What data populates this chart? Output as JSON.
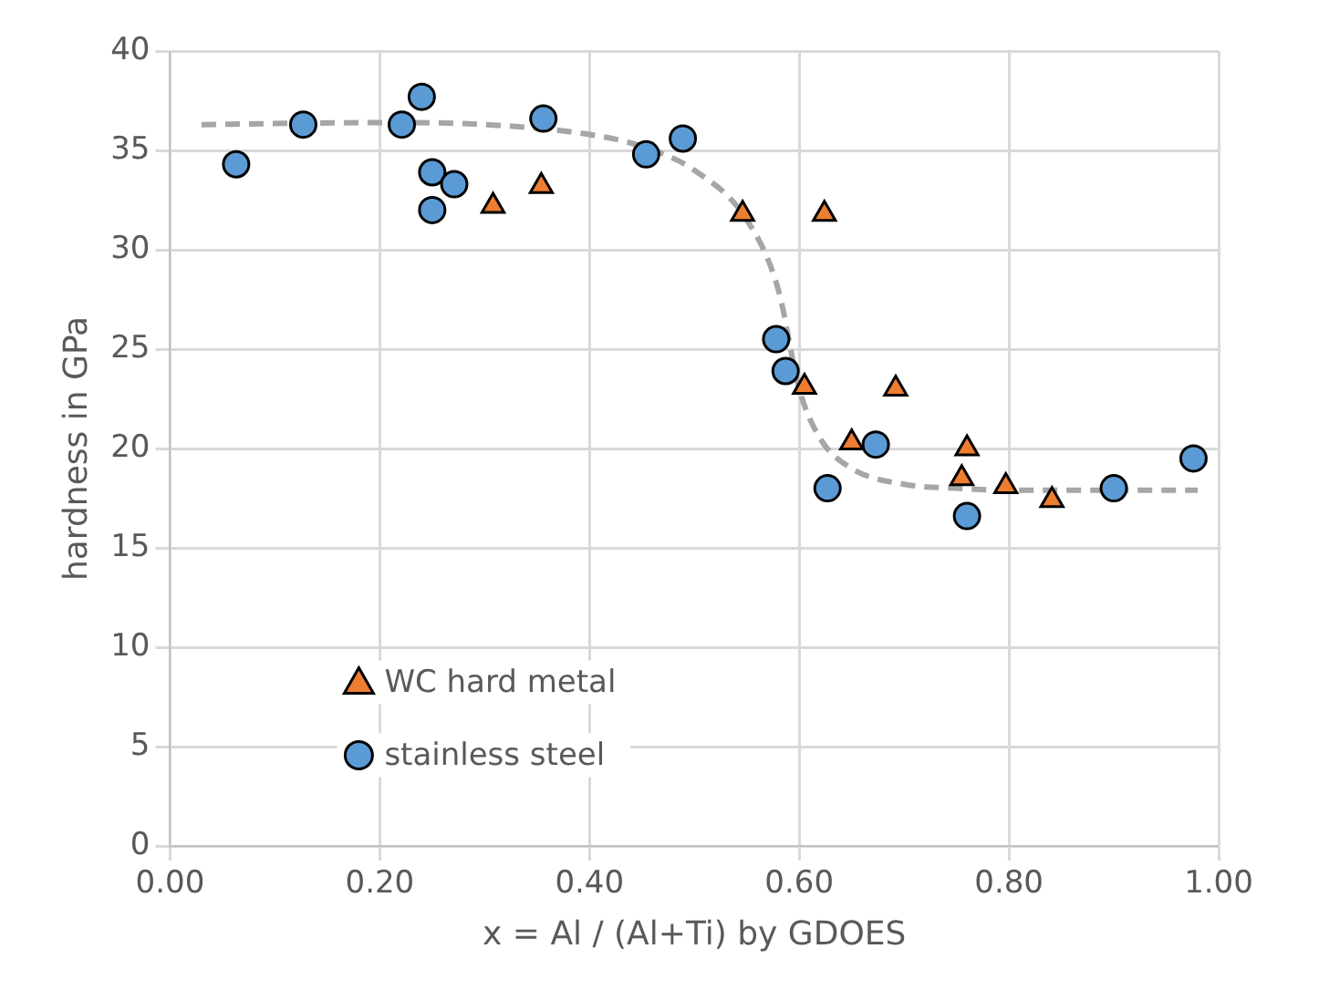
{
  "chart_data": {
    "type": "scatter",
    "xlabel": "x = Al / (Al+Ti) by GDOES",
    "ylabel": "hardness in GPa",
    "xlim": [
      0,
      1
    ],
    "xticks": [
      {
        "value": 0,
        "label": "0.00"
      },
      {
        "value": 0.2,
        "label": "0.20"
      },
      {
        "value": 0.4,
        "label": "0.40"
      },
      {
        "value": 0.6,
        "label": "0.60"
      },
      {
        "value": 0.8,
        "label": "0.80"
      },
      {
        "value": 1,
        "label": "1.00"
      }
    ],
    "ylim": [
      0,
      40
    ],
    "yticks": [
      0,
      5,
      10,
      15,
      20,
      25,
      30,
      35,
      40
    ],
    "grid": true,
    "legend": "bottom left",
    "series": [
      {
        "type": "line",
        "color": "#a6a6a6",
        "line_style": "dashed",
        "marker": "none",
        "x": [
          0.03,
          0.2,
          0.3,
          0.4,
          0.45,
          0.5,
          0.55,
          0.58,
          0.6,
          0.62,
          0.65,
          0.7,
          0.75,
          0.8,
          0.98
        ],
        "values": [
          36.3,
          36.4,
          36.3,
          35.8,
          35.2,
          34.0,
          31.5,
          28.0,
          23.0,
          20.5,
          19.0,
          18.2,
          18.0,
          17.9,
          17.9
        ]
      },
      {
        "name": "WC hard metal",
        "color": "#ed7d31",
        "marker": "triangle",
        "x": [
          0.308,
          0.354,
          0.546,
          0.624,
          0.605,
          0.65,
          0.692,
          0.76,
          0.755,
          0.797,
          0.841
        ],
        "values": [
          32.2,
          33.2,
          31.8,
          31.8,
          23.1,
          20.3,
          23.0,
          20.0,
          18.5,
          18.1,
          17.4
        ]
      },
      {
        "name": "stainless steel",
        "color": "#5b9bd5",
        "marker": "circle",
        "x": [
          0.063,
          0.127,
          0.221,
          0.24,
          0.25,
          0.25,
          0.271,
          0.356,
          0.454,
          0.489,
          0.578,
          0.587,
          0.673,
          0.627,
          0.76,
          0.9,
          0.976
        ],
        "values": [
          34.3,
          36.3,
          36.3,
          37.7,
          33.9,
          32.0,
          33.3,
          36.6,
          34.8,
          35.6,
          25.5,
          23.9,
          20.2,
          18.0,
          16.6,
          18.0,
          19.5
        ]
      }
    ]
  }
}
